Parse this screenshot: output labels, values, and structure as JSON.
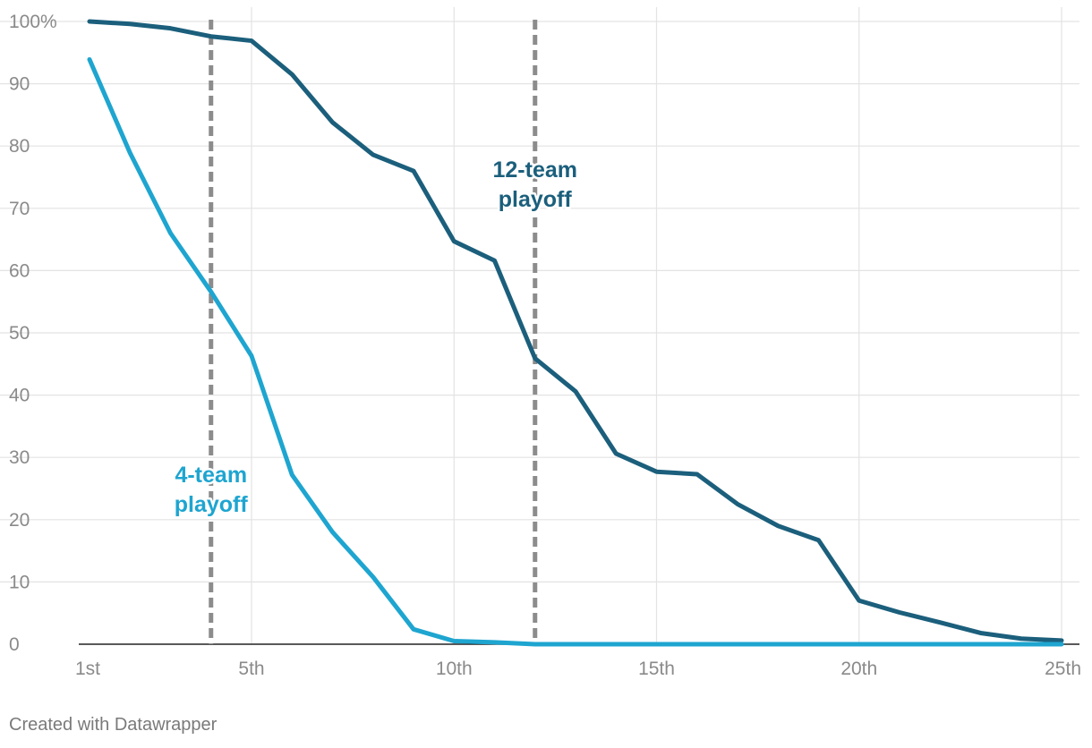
{
  "chart_data": {
    "type": "line",
    "x": [
      1,
      2,
      3,
      4,
      5,
      6,
      7,
      8,
      9,
      10,
      11,
      12,
      13,
      14,
      15,
      16,
      17,
      18,
      19,
      20,
      21,
      22,
      23,
      24,
      25
    ],
    "xlim": [
      1,
      25
    ],
    "ylim": [
      0,
      100
    ],
    "x_ticks": [
      {
        "value": 1,
        "label": "1st"
      },
      {
        "value": 5,
        "label": "5th"
      },
      {
        "value": 10,
        "label": "10th"
      },
      {
        "value": 15,
        "label": "15th"
      },
      {
        "value": 20,
        "label": "20th"
      },
      {
        "value": 25,
        "label": "25th"
      }
    ],
    "y_ticks": [
      {
        "value": 0,
        "label": "0"
      },
      {
        "value": 10,
        "label": "10"
      },
      {
        "value": 20,
        "label": "20"
      },
      {
        "value": 30,
        "label": "30"
      },
      {
        "value": 40,
        "label": "40"
      },
      {
        "value": 50,
        "label": "50"
      },
      {
        "value": 60,
        "label": "60"
      },
      {
        "value": 70,
        "label": "70"
      },
      {
        "value": 80,
        "label": "80"
      },
      {
        "value": 90,
        "label": "90"
      },
      {
        "value": 100,
        "label": "100%"
      }
    ],
    "grid": true,
    "series": [
      {
        "color": "#1b5f7c",
        "values": [
          100,
          99.6,
          98.9,
          97.6,
          96.9,
          91.5,
          83.8,
          78.6,
          76.0,
          64.7,
          61.6,
          45.9,
          40.6,
          30.6,
          27.7,
          27.3,
          22.5,
          19.0,
          16.7,
          7.0,
          5.1,
          3.5,
          1.8,
          0.9,
          0.6
        ]
      },
      {
        "color": "#1ea5d0",
        "values": [
          93.9,
          78.9,
          66.0,
          56.6,
          46.3,
          27.2,
          18.0,
          10.8,
          2.4,
          0.5,
          0.3,
          0,
          0,
          0,
          0,
          0,
          0,
          0,
          0,
          0,
          0,
          0,
          0,
          0,
          0
        ]
      }
    ],
    "reference_lines": [
      {
        "x": 4,
        "color": "#8c8c8c"
      },
      {
        "x": 12,
        "color": "#8c8c8c"
      }
    ],
    "annotations": [
      {
        "lines": [
          "12-team",
          "playoff"
        ],
        "x": 12,
        "color": "#1b5f7c",
        "y_text": 75
      },
      {
        "lines": [
          "4-team",
          "playoff"
        ],
        "x": 4,
        "color": "#1ea5d0",
        "y_text": 26
      }
    ]
  },
  "credit": "Created with Datawrapper"
}
